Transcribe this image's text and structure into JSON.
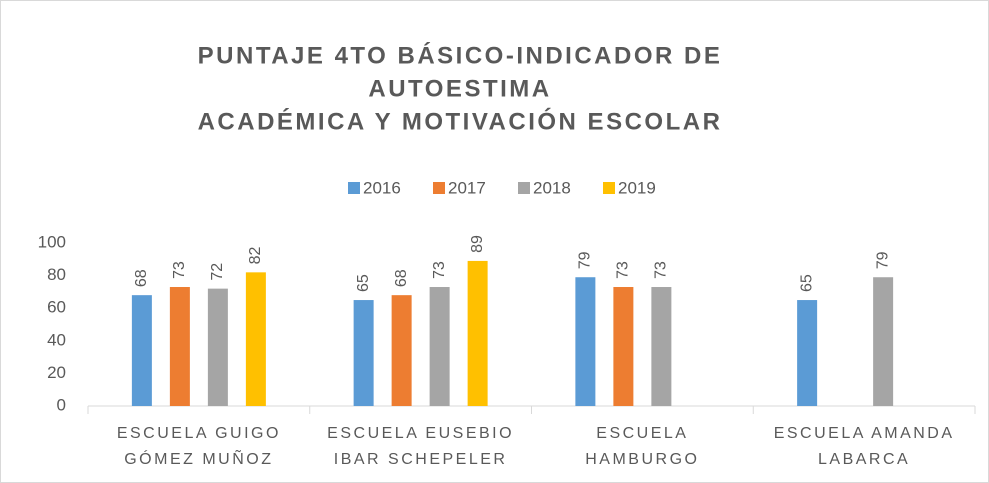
{
  "chart_data": {
    "type": "bar",
    "title": [
      "PUNTAJE 4TO BÁSICO-INDICADOR DE",
      "AUTOESTIMA",
      "ACADÉMICA Y MOTIVACIÓN ESCOLAR"
    ],
    "categories": [
      [
        "ESCUELA GUIGO",
        "GÓMEZ MUÑOZ"
      ],
      [
        "ESCUELA EUSEBIO",
        "IBAR SCHEPELER"
      ],
      [
        "ESCUELA",
        "HAMBURGO"
      ],
      [
        "ESCUELA AMANDA",
        "LABARCA"
      ]
    ],
    "series": [
      {
        "name": "2016",
        "color": "#5b9bd5",
        "values": [
          68,
          65,
          79,
          65
        ]
      },
      {
        "name": "2017",
        "color": "#ed7d31",
        "values": [
          73,
          68,
          73,
          null
        ]
      },
      {
        "name": "2018",
        "color": "#a5a5a5",
        "values": [
          72,
          73,
          73,
          79
        ]
      },
      {
        "name": "2019",
        "color": "#ffc000",
        "values": [
          82,
          89,
          null,
          null
        ]
      }
    ],
    "ylim": [
      0,
      100
    ],
    "yticks": [
      0,
      20,
      40,
      60,
      80,
      100
    ],
    "legend": "top",
    "data_labels": true
  }
}
